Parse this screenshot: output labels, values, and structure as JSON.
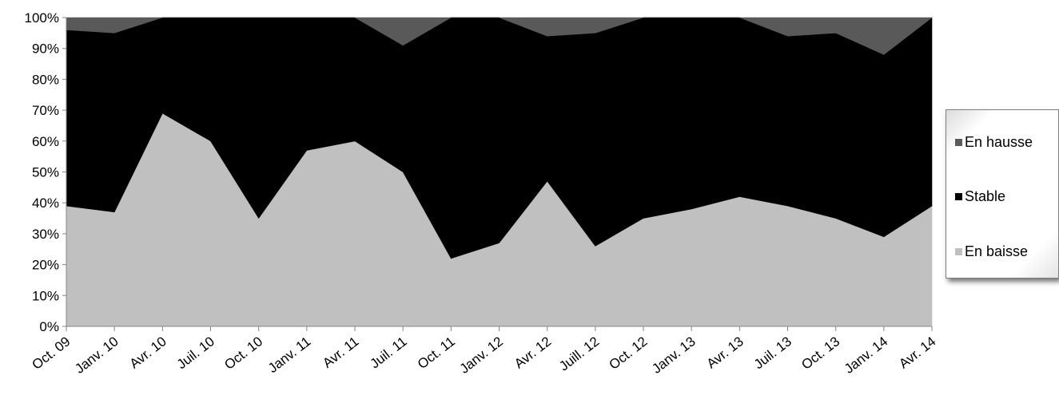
{
  "chart_data": {
    "type": "area",
    "stacked": "percent",
    "categories": [
      "Oct. 09",
      "Janv. 10",
      "Avr. 10",
      "Juil. 10",
      "Oct. 10",
      "Janv. 11",
      "Avr. 11",
      "Juil. 11",
      "Oct. 11",
      "Janv. 12",
      "Avr. 12",
      "Juill. 12",
      "Oct. 12",
      "Janv. 13",
      "Avr. 13",
      "Juil. 13",
      "Oct. 13",
      "Janv. 14",
      "Avr. 14"
    ],
    "series": [
      {
        "name": "En baisse",
        "color": "#c0c0c0",
        "values": [
          39,
          37,
          69,
          60,
          35,
          57,
          60,
          50,
          22,
          27,
          47,
          26,
          35,
          38,
          42,
          39,
          35,
          29,
          39
        ]
      },
      {
        "name": "Stable",
        "color": "#000000",
        "values": [
          57,
          58,
          31,
          40,
          65,
          43,
          40,
          41,
          78,
          73,
          47,
          69,
          65,
          62,
          58,
          55,
          60,
          59,
          61
        ]
      },
      {
        "name": "En hausse",
        "color": "#595959",
        "values": [
          4,
          5,
          0,
          0,
          0,
          0,
          0,
          9,
          0,
          0,
          6,
          5,
          0,
          0,
          0,
          6,
          5,
          12,
          0
        ]
      }
    ],
    "y_ticks": [
      "0%",
      "10%",
      "20%",
      "30%",
      "40%",
      "50%",
      "60%",
      "70%",
      "80%",
      "90%",
      "100%"
    ],
    "ylim": [
      0,
      100
    ],
    "grid": false,
    "legend": {
      "position": "right",
      "order": [
        "En hausse",
        "Stable",
        "En baisse"
      ]
    }
  }
}
